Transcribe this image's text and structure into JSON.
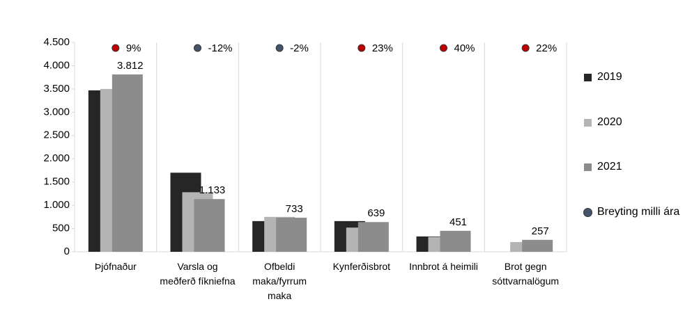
{
  "chart_data": {
    "type": "bar",
    "categories": [
      "Þjófnaður",
      "Varsla og meðferð fíkniefna",
      "Ofbeldi maka/fyrrum maka",
      "Kynferðisbrot",
      "Innbrot á heimili",
      "Brot gegn sóttvarnalögum"
    ],
    "series": [
      {
        "name": "2019",
        "color": "#262626",
        "values": [
          3470,
          1700,
          660,
          660,
          330,
          null
        ]
      },
      {
        "name": "2020",
        "color": "#b4b4b4",
        "values": [
          3500,
          1280,
          750,
          520,
          320,
          210
        ]
      },
      {
        "name": "2021",
        "color": "#8c8c8c",
        "values": [
          3812,
          1133,
          733,
          639,
          451,
          257
        ],
        "value_labels": [
          "3.812",
          "1.133",
          "733",
          "639",
          "451",
          "257"
        ]
      },
      {
        "name": "Breyting milli ára",
        "type": "scatter",
        "color": "#c00000",
        "negative_color": "#44546a",
        "values": [
          9,
          -12,
          -2,
          23,
          40,
          22
        ],
        "value_labels": [
          "9%",
          "-12%",
          "-2%",
          "23%",
          "40%",
          "22%"
        ]
      }
    ],
    "ylim": [
      0,
      4500
    ],
    "yticks": [
      0,
      500,
      {
        "value": 1000,
        "label": "1.000"
      },
      {
        "value": 1500,
        "label": "1.500"
      },
      {
        "value": 2000,
        "label": "2.000"
      },
      {
        "value": 2500,
        "label": "2.500"
      },
      {
        "value": 3000,
        "label": "3.000"
      },
      {
        "value": 3500,
        "label": "3.500"
      },
      {
        "value": 4000,
        "label": "4.000"
      },
      {
        "value": 4500,
        "label": "4.500"
      }
    ],
    "grid": "x",
    "legend": "right"
  }
}
